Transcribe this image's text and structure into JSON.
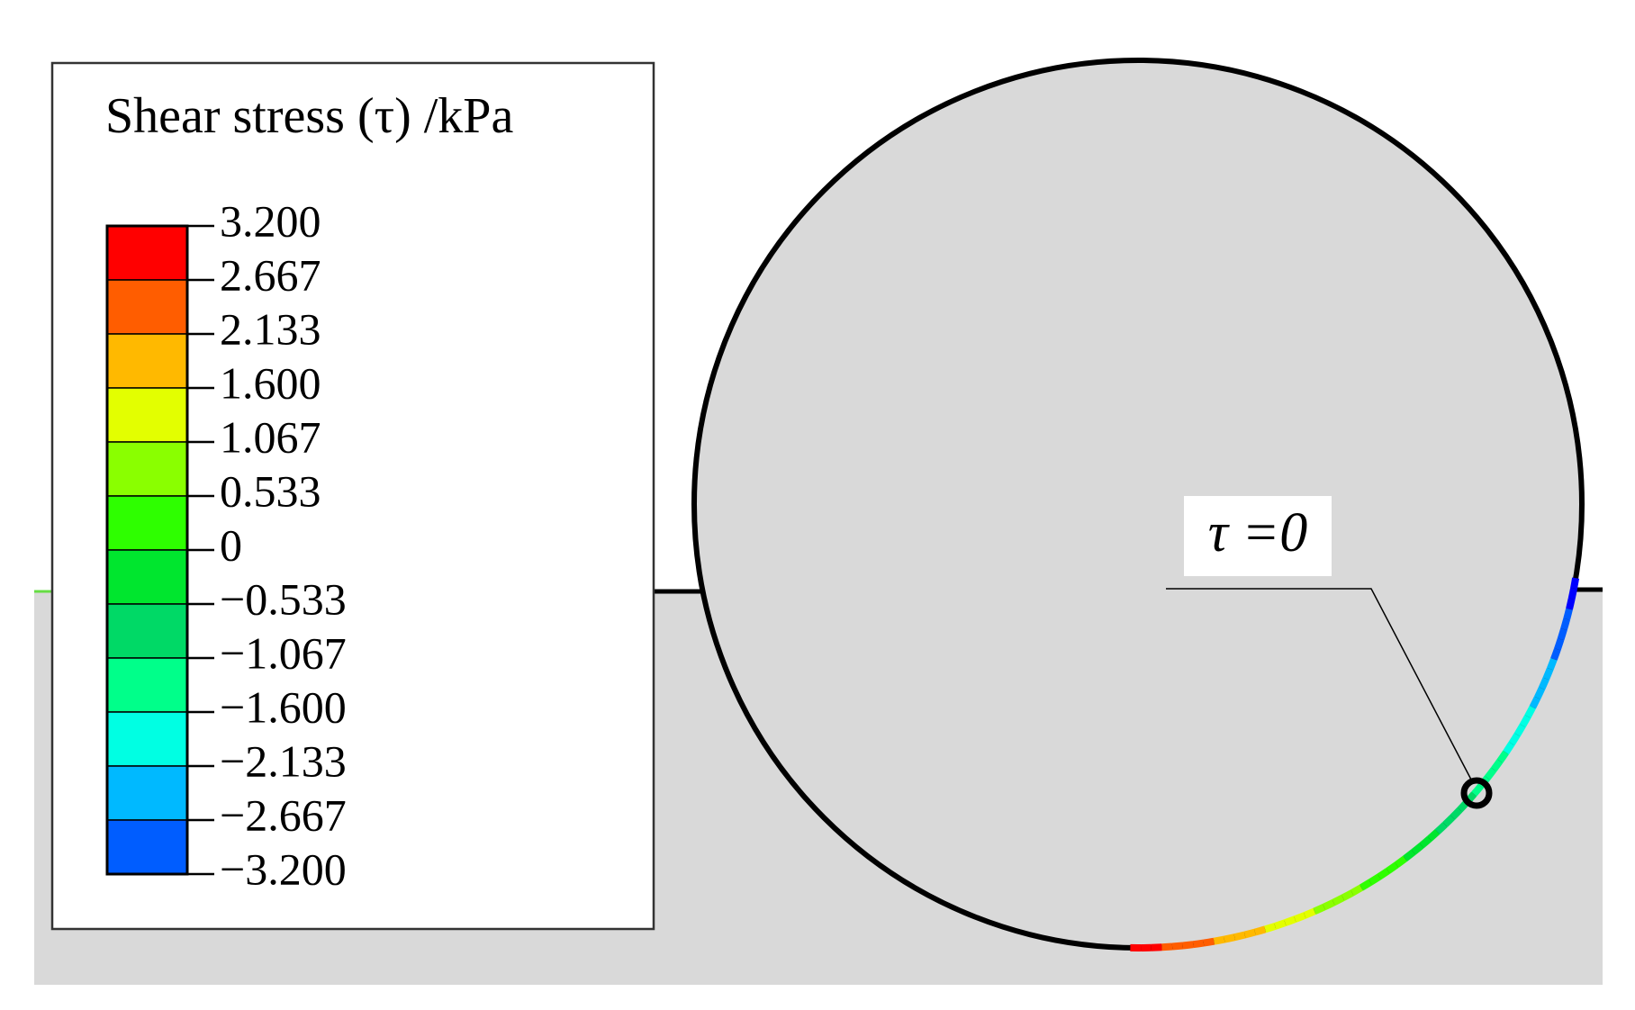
{
  "legend": {
    "title": "Shear stress (τ) /kPa",
    "labels": [
      "3.200",
      "2.667",
      "2.133",
      "1.600",
      "1.067",
      "0.533",
      "0",
      "−0.533",
      "−1.067",
      "−1.600",
      "−2.133",
      "−2.667",
      "−3.200"
    ],
    "colors": [
      "#ff0000",
      "#ff5d00",
      "#ffb900",
      "#e3ff00",
      "#8aff00",
      "#2eff00",
      "#00e62e",
      "#00d966",
      "#00ff8a",
      "#00ffe3",
      "#00b9ff",
      "#005dff",
      "#0000ff"
    ]
  },
  "annotation": {
    "label": "τ =0"
  }
}
